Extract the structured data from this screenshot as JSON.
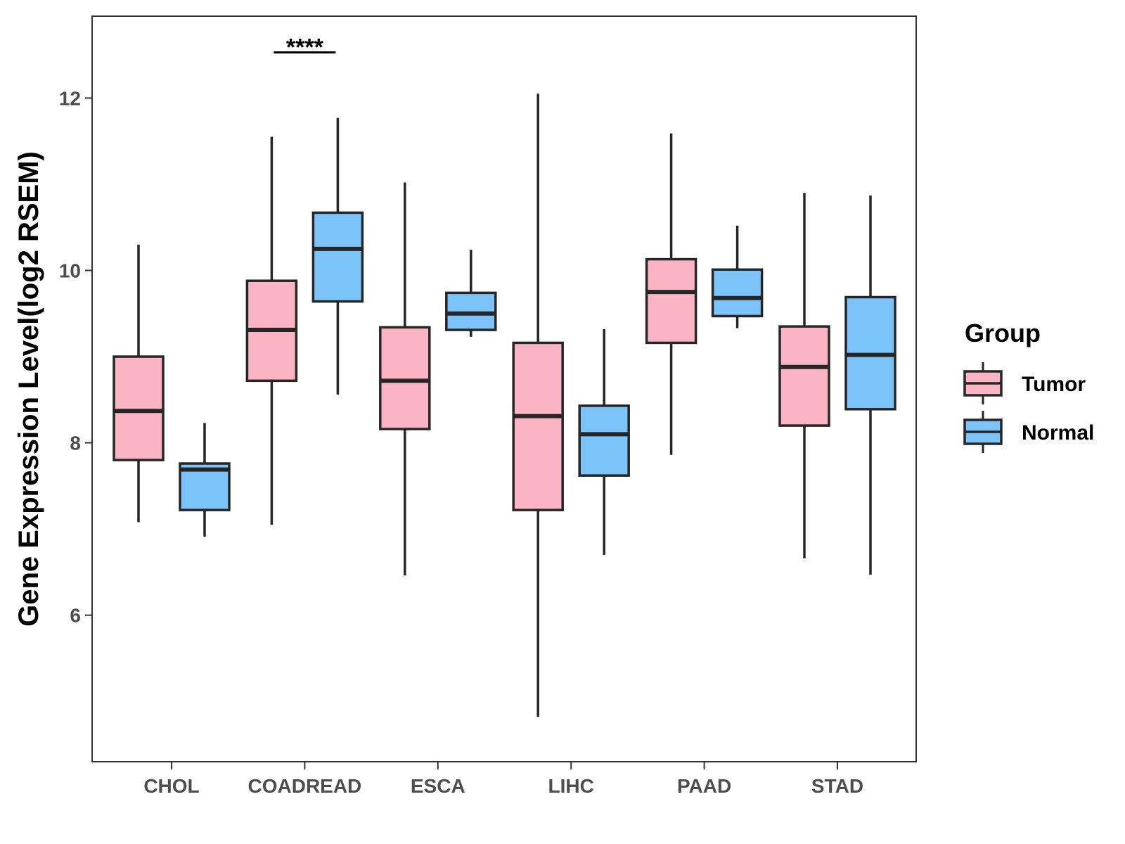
{
  "chart_data": {
    "type": "boxplot",
    "title": "",
    "xlabel": "",
    "ylabel": "Gene Expression Level(log2 RSEM)",
    "ylim": [
      4.3,
      12.95
    ],
    "yticks": [
      6,
      8,
      10,
      12
    ],
    "categories": [
      "CHOL",
      "COADREAD",
      "ESCA",
      "LIHC",
      "PAAD",
      "STAD"
    ],
    "legend": {
      "title": "Group",
      "position": "right",
      "entries": [
        {
          "name": "Tumor",
          "color": "#fbb4c4"
        },
        {
          "name": "Normal",
          "color": "#7bc3f8"
        }
      ]
    },
    "series": [
      {
        "name": "Tumor",
        "color": "#fbb4c4",
        "boxes": [
          {
            "category": "CHOL",
            "min": 7.08,
            "q1": 7.8,
            "median": 8.37,
            "q3": 9.0,
            "max": 10.3
          },
          {
            "category": "COADREAD",
            "min": 7.05,
            "q1": 8.72,
            "median": 9.31,
            "q3": 9.88,
            "max": 11.55
          },
          {
            "category": "ESCA",
            "min": 6.46,
            "q1": 8.16,
            "median": 8.72,
            "q3": 9.34,
            "max": 11.02
          },
          {
            "category": "LIHC",
            "min": 4.82,
            "q1": 7.22,
            "median": 8.31,
            "q3": 9.16,
            "max": 12.05
          },
          {
            "category": "PAAD",
            "min": 7.86,
            "q1": 9.16,
            "median": 9.75,
            "q3": 10.13,
            "max": 11.59
          },
          {
            "category": "STAD",
            "min": 6.66,
            "q1": 8.2,
            "median": 8.88,
            "q3": 9.35,
            "max": 10.9
          }
        ]
      },
      {
        "name": "Normal",
        "color": "#7bc3f8",
        "boxes": [
          {
            "category": "CHOL",
            "min": 6.91,
            "q1": 7.22,
            "median": 7.69,
            "q3": 7.76,
            "max": 8.23
          },
          {
            "category": "COADREAD",
            "min": 8.56,
            "q1": 9.64,
            "median": 10.25,
            "q3": 10.67,
            "max": 11.77
          },
          {
            "category": "ESCA",
            "min": 9.23,
            "q1": 9.31,
            "median": 9.5,
            "q3": 9.74,
            "max": 10.24
          },
          {
            "category": "LIHC",
            "min": 6.7,
            "q1": 7.62,
            "median": 8.1,
            "q3": 8.43,
            "max": 9.32
          },
          {
            "category": "PAAD",
            "min": 9.33,
            "q1": 9.47,
            "median": 9.68,
            "q3": 10.01,
            "max": 10.52
          },
          {
            "category": "STAD",
            "min": 6.47,
            "q1": 8.39,
            "median": 9.02,
            "q3": 9.69,
            "max": 10.87
          }
        ]
      }
    ],
    "annotations": [
      {
        "category": "COADREAD",
        "text": "****",
        "y": 12.53
      }
    ],
    "grid": false
  }
}
